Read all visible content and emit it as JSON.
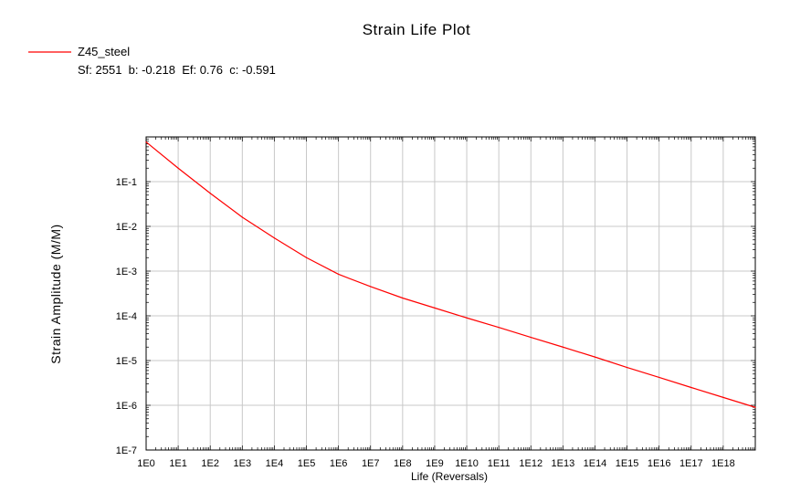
{
  "chart_data": {
    "type": "line",
    "title": "Strain Life Plot",
    "xlabel": "Life (Reversals)",
    "ylabel": "Strain Amplitude (M/M)",
    "x_scale": "log",
    "y_scale": "log",
    "xlim": [
      1,
      1e+19
    ],
    "ylim": [
      1e-07,
      1
    ],
    "grid": true,
    "legend_position": "top-left",
    "x_ticks": [
      "1E0",
      "1E1",
      "1E2",
      "1E3",
      "1E4",
      "1E5",
      "1E6",
      "1E7",
      "1E8",
      "1E9",
      "1E10",
      "1E11",
      "1E12",
      "1E13",
      "1E14",
      "1E15",
      "1E16",
      "1E17",
      "1E18"
    ],
    "y_ticks": [
      "1E-7",
      "1E-6",
      "1E-5",
      "1E-4",
      "1E-3",
      "1E-2",
      "1E-1"
    ],
    "series": [
      {
        "name": "Z45_steel",
        "parameters_label": "Sf: 2551  b: -0.218  Ef: 0.76  c: -0.591",
        "color": "#ff0000",
        "x": [
          1,
          10,
          100,
          1000,
          10000,
          100000,
          1000000,
          10000000.0,
          100000000.0,
          1000000000.0,
          10000000000.0,
          100000000000.0,
          1000000000000.0,
          10000000000000.0,
          100000000000000.0,
          1000000000000000.0,
          1e+16,
          1e+17,
          1e+18,
          1e+19
        ],
        "y": [
          0.77,
          0.2,
          0.055,
          0.016,
          0.0055,
          0.002,
          0.00085,
          0.00045,
          0.00025,
          0.00015,
          9e-05,
          5.5e-05,
          3.3e-05,
          2e-05,
          1.2e-05,
          7e-06,
          4.2e-06,
          2.5e-06,
          1.5e-06,
          9e-07
        ]
      }
    ]
  }
}
